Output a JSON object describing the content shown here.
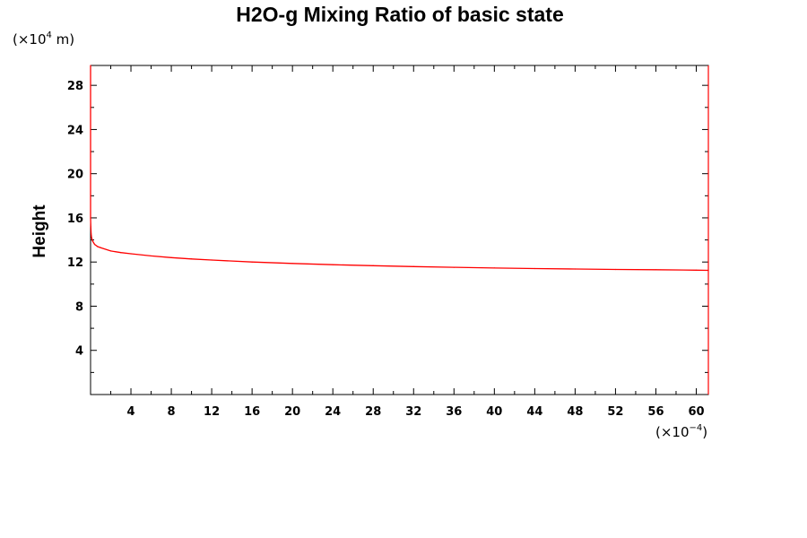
{
  "chart_data": {
    "type": "line",
    "title": "H2O-g Mixing Ratio of basic state",
    "ylabel": "Height",
    "xlabel": "",
    "y_unit_prefix": "(×10",
    "y_unit_exp": "4",
    "y_unit_suffix": " m)",
    "x_unit_prefix": "(×10",
    "x_unit_exp": "−4",
    "x_unit_suffix": ")",
    "xlim": [
      0,
      61.2
    ],
    "ylim": [
      0,
      29.8
    ],
    "x_ticks": [
      4,
      8,
      12,
      16,
      20,
      24,
      28,
      32,
      36,
      40,
      44,
      48,
      52,
      56,
      60
    ],
    "y_ticks": [
      4,
      8,
      12,
      16,
      20,
      24,
      28
    ],
    "series": [
      {
        "color": "#ff0000",
        "x": [
          0.0,
          0.0,
          0.03,
          0.05,
          0.1,
          0.2,
          0.4,
          0.7,
          1.0,
          2.0,
          3.0,
          4.0,
          6.0,
          8.0,
          10.0,
          12.0,
          16.0,
          20.0,
          24.0,
          28.0,
          32.0,
          36.0,
          40.0,
          44.0,
          48.0,
          52.0,
          56.0,
          60.0,
          61.2
        ],
        "y": [
          29.8,
          16.0,
          15.2,
          14.6,
          14.2,
          13.9,
          13.6,
          13.4,
          13.3,
          13.0,
          12.85,
          12.75,
          12.55,
          12.4,
          12.28,
          12.18,
          12.0,
          11.87,
          11.76,
          11.67,
          11.59,
          11.52,
          11.46,
          11.41,
          11.37,
          11.33,
          11.3,
          11.26,
          11.25
        ]
      }
    ],
    "grid": false,
    "legend": "none"
  }
}
